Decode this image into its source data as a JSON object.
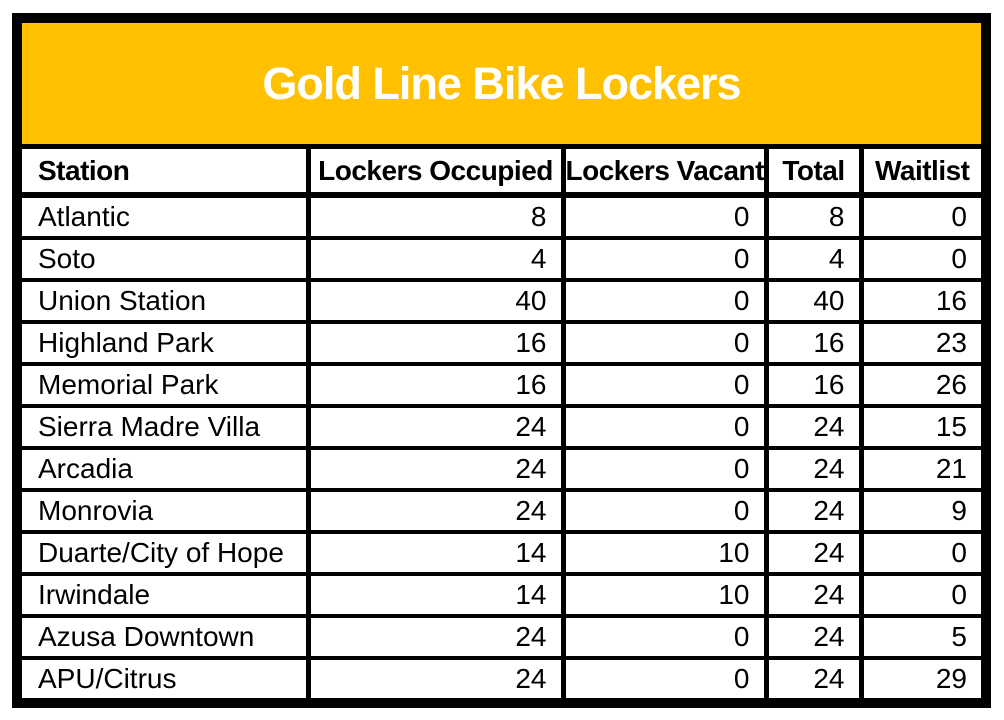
{
  "title": "Gold Line Bike Lockers",
  "theme": {
    "banner_color": "#FFC000",
    "border_color": "#000000",
    "title_color": "#FFFFFF",
    "text_color": "#000000",
    "background_color": "#FFFFFF"
  },
  "table": {
    "columns": [
      {
        "key": "station",
        "label": "Station",
        "align": "left"
      },
      {
        "key": "occupied",
        "label": "Lockers Occupied",
        "align": "right"
      },
      {
        "key": "vacant",
        "label": "Lockers Vacant",
        "align": "right"
      },
      {
        "key": "total",
        "label": "Total",
        "align": "right"
      },
      {
        "key": "waitlist",
        "label": "Waitlist",
        "align": "right"
      }
    ],
    "rows": [
      {
        "station": "Atlantic",
        "occupied": "8",
        "vacant": "0",
        "total": "8",
        "waitlist": "0"
      },
      {
        "station": "Soto",
        "occupied": "4",
        "vacant": "0",
        "total": "4",
        "waitlist": "0"
      },
      {
        "station": "Union Station",
        "occupied": "40",
        "vacant": "0",
        "total": "40",
        "waitlist": "16"
      },
      {
        "station": "Highland Park",
        "occupied": "16",
        "vacant": "0",
        "total": "16",
        "waitlist": "23"
      },
      {
        "station": "Memorial Park",
        "occupied": "16",
        "vacant": "0",
        "total": "16",
        "waitlist": "26"
      },
      {
        "station": "Sierra Madre Villa",
        "occupied": "24",
        "vacant": "0",
        "total": "24",
        "waitlist": "15"
      },
      {
        "station": "Arcadia",
        "occupied": "24",
        "vacant": "0",
        "total": "24",
        "waitlist": "21"
      },
      {
        "station": "Monrovia",
        "occupied": "24",
        "vacant": "0",
        "total": "24",
        "waitlist": "9"
      },
      {
        "station": "Duarte/City of Hope",
        "occupied": "14",
        "vacant": "10",
        "total": "24",
        "waitlist": "0"
      },
      {
        "station": "Irwindale",
        "occupied": "14",
        "vacant": "10",
        "total": "24",
        "waitlist": "0"
      },
      {
        "station": "Azusa Downtown",
        "occupied": "24",
        "vacant": "0",
        "total": "24",
        "waitlist": "5"
      },
      {
        "station": "APU/Citrus",
        "occupied": "24",
        "vacant": "0",
        "total": "24",
        "waitlist": "29"
      }
    ]
  },
  "chart_data": {
    "type": "table",
    "title": "Gold Line Bike Lockers",
    "columns": [
      "Station",
      "Lockers Occupied",
      "Lockers Vacant",
      "Total",
      "Waitlist"
    ],
    "rows": [
      [
        "Atlantic",
        8,
        0,
        8,
        0
      ],
      [
        "Soto",
        4,
        0,
        4,
        0
      ],
      [
        "Union Station",
        40,
        0,
        40,
        16
      ],
      [
        "Highland Park",
        16,
        0,
        16,
        23
      ],
      [
        "Memorial Park",
        16,
        0,
        16,
        26
      ],
      [
        "Sierra Madre Villa",
        24,
        0,
        24,
        15
      ],
      [
        "Arcadia",
        24,
        0,
        24,
        21
      ],
      [
        "Monrovia",
        24,
        0,
        24,
        9
      ],
      [
        "Duarte/City of Hope",
        14,
        10,
        24,
        0
      ],
      [
        "Irwindale",
        14,
        10,
        24,
        0
      ],
      [
        "Azusa Downtown",
        24,
        0,
        24,
        5
      ],
      [
        "APU/Citrus",
        24,
        0,
        24,
        29
      ]
    ]
  }
}
